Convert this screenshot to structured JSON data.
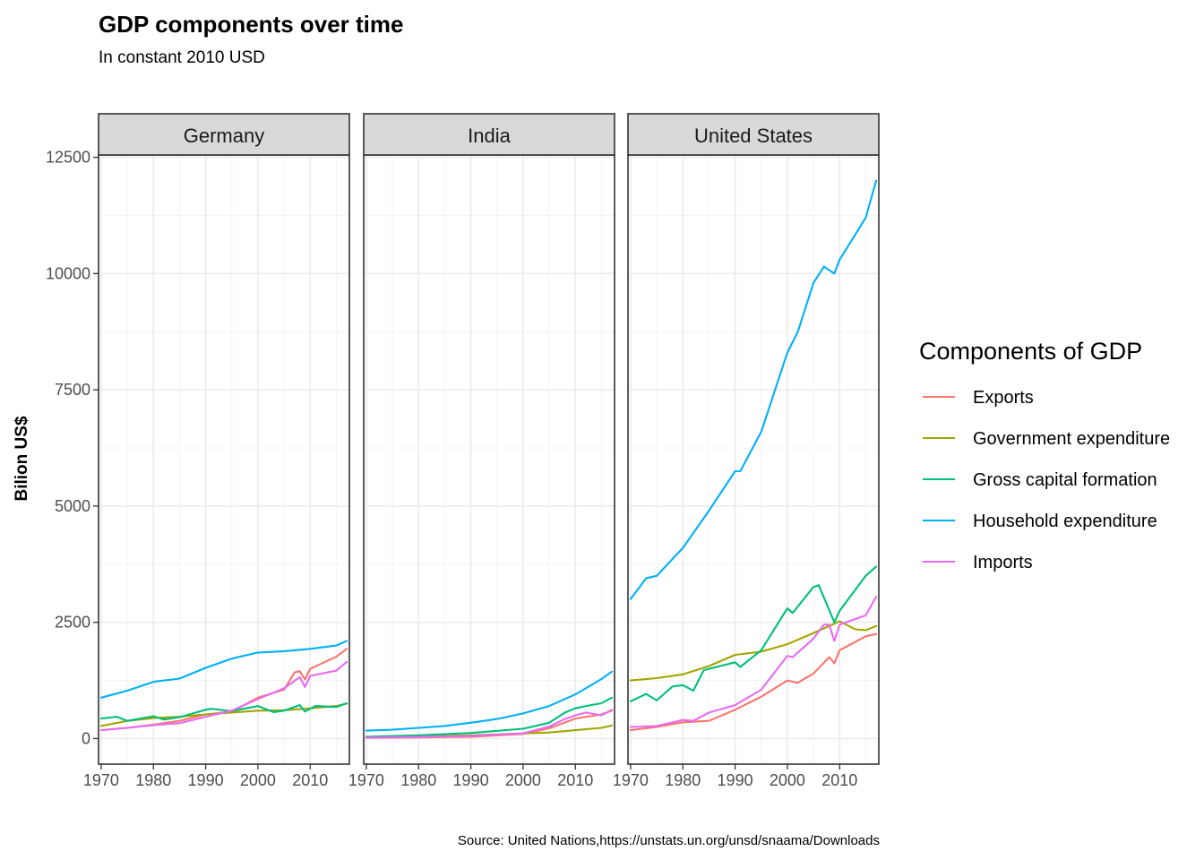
{
  "chart_data": {
    "type": "line",
    "title": "GDP components over time",
    "subtitle": "In constant 2010 USD",
    "ylabel": "Bilion US$",
    "xlabel": "",
    "caption": "Source: United Nations,https://unstats.un.org/unsd/snaama/Downloads",
    "ylim": [
      -550,
      12550
    ],
    "y_ticks": [
      0,
      2500,
      5000,
      7500,
      10000,
      12500
    ],
    "xlim": [
      1969.5,
      2017.5
    ],
    "x_ticks": [
      1970,
      1980,
      1990,
      2000,
      2010
    ],
    "legend": {
      "title": "Components of GDP",
      "position": "right",
      "entries": [
        {
          "name": "Exports",
          "color": "#F8766D"
        },
        {
          "name": "Government expenditure",
          "color": "#A3A500"
        },
        {
          "name": "Gross capital formation",
          "color": "#00BF7D"
        },
        {
          "name": "Household expenditure",
          "color": "#00B0F6"
        },
        {
          "name": "Imports",
          "color": "#E76BF3"
        }
      ]
    },
    "panels": [
      {
        "name": "Germany",
        "series": [
          {
            "name": "Exports",
            "x": [
              1970,
              1975,
              1980,
              1985,
              1990,
              1995,
              2000,
              2005,
              2007,
              2008,
              2009,
              2010,
              2015,
              2017
            ],
            "y": [
              180,
              230,
              300,
              380,
              520,
              580,
              880,
              1050,
              1420,
              1450,
              1270,
              1500,
              1760,
              1930
            ]
          },
          {
            "name": "Government expenditure",
            "x": [
              1970,
              1975,
              1980,
              1985,
              1990,
              1995,
              2000,
              2005,
              2010,
              2015,
              2017
            ],
            "y": [
              270,
              380,
              440,
              470,
              520,
              560,
              600,
              610,
              650,
              700,
              750
            ]
          },
          {
            "name": "Gross capital formation",
            "x": [
              1970,
              1973,
              1975,
              1980,
              1982,
              1985,
              1990,
              1991,
              1995,
              2000,
              2003,
              2005,
              2008,
              2009,
              2011,
              2015,
              2017
            ],
            "y": [
              430,
              470,
              380,
              480,
              410,
              460,
              620,
              640,
              590,
              700,
              570,
              600,
              720,
              580,
              700,
              680,
              760
            ]
          },
          {
            "name": "Household expenditure",
            "x": [
              1970,
              1975,
              1980,
              1985,
              1990,
              1995,
              2000,
              2005,
              2010,
              2015,
              2017
            ],
            "y": [
              880,
              1030,
              1220,
              1290,
              1520,
              1720,
              1850,
              1880,
              1930,
              2000,
              2100
            ]
          },
          {
            "name": "Imports",
            "x": [
              1970,
              1975,
              1980,
              1985,
              1990,
              1995,
              2000,
              2005,
              2008,
              2009,
              2010,
              2015,
              2017
            ],
            "y": [
              180,
              230,
              290,
              330,
              470,
              600,
              850,
              1080,
              1320,
              1110,
              1350,
              1460,
              1650
            ]
          }
        ]
      },
      {
        "name": "India",
        "series": [
          {
            "name": "Exports",
            "x": [
              1970,
              1980,
              1990,
              2000,
              2005,
              2010,
              2015,
              2017
            ],
            "y": [
              15,
              25,
              40,
              100,
              220,
              430,
              520,
              600
            ]
          },
          {
            "name": "Government expenditure",
            "x": [
              1970,
              1980,
              1990,
              2000,
              2005,
              2010,
              2015,
              2017
            ],
            "y": [
              30,
              45,
              70,
              110,
              130,
              180,
              230,
              280
            ]
          },
          {
            "name": "Gross capital formation",
            "x": [
              1970,
              1980,
              1990,
              2000,
              2005,
              2008,
              2010,
              2012,
              2015,
              2017
            ],
            "y": [
              40,
              70,
              120,
              210,
              340,
              560,
              650,
              700,
              760,
              880
            ]
          },
          {
            "name": "Household expenditure",
            "x": [
              1970,
              1975,
              1980,
              1985,
              1990,
              1995,
              2000,
              2005,
              2010,
              2015,
              2017
            ],
            "y": [
              170,
              190,
              230,
              270,
              340,
              420,
              540,
              700,
              950,
              1280,
              1440
            ]
          },
          {
            "name": "Imports",
            "x": [
              1970,
              1980,
              1990,
              2000,
              2005,
              2008,
              2010,
              2012,
              2015,
              2017
            ],
            "y": [
              20,
              35,
              55,
              110,
              260,
              420,
              500,
              560,
              500,
              620
            ]
          }
        ]
      },
      {
        "name": "United States",
        "series": [
          {
            "name": "Exports",
            "x": [
              1970,
              1975,
              1980,
              1985,
              1990,
              1995,
              2000,
              2002,
              2005,
              2008,
              2009,
              2010,
              2015,
              2017
            ],
            "y": [
              180,
              250,
              350,
              380,
              620,
              900,
              1250,
              1200,
              1400,
              1750,
              1620,
              1900,
              2200,
              2250
            ]
          },
          {
            "name": "Government expenditure",
            "x": [
              1970,
              1975,
              1980,
              1985,
              1990,
              1995,
              2000,
              2005,
              2010,
              2013,
              2015,
              2017
            ],
            "y": [
              1250,
              1300,
              1380,
              1560,
              1800,
              1870,
              2030,
              2270,
              2520,
              2350,
              2330,
              2420
            ]
          },
          {
            "name": "Gross capital formation",
            "x": [
              1970,
              1973,
              1975,
              1978,
              1980,
              1982,
              1984,
              1985,
              1990,
              1991,
              1995,
              2000,
              2001,
              2005,
              2006,
              2009,
              2010,
              2015,
              2017
            ],
            "y": [
              800,
              960,
              820,
              1120,
              1150,
              1030,
              1470,
              1500,
              1640,
              1540,
              1900,
              2800,
              2700,
              3260,
              3300,
              2500,
              2750,
              3500,
              3700
            ]
          },
          {
            "name": "Household expenditure",
            "x": [
              1970,
              1973,
              1975,
              1980,
              1985,
              1990,
              1991,
              1995,
              2000,
              2002,
              2005,
              2007,
              2009,
              2010,
              2015,
              2017
            ],
            "y": [
              3000,
              3450,
              3500,
              4100,
              4900,
              5750,
              5750,
              6600,
              8300,
              8750,
              9800,
              10150,
              10000,
              10300,
              11200,
              12000
            ]
          },
          {
            "name": "Imports",
            "x": [
              1970,
              1975,
              1980,
              1982,
              1985,
              1990,
              1995,
              2000,
              2001,
              2005,
              2007,
              2008,
              2009,
              2010,
              2015,
              2017
            ],
            "y": [
              250,
              270,
              400,
              380,
              560,
              720,
              1050,
              1780,
              1750,
              2150,
              2450,
              2450,
              2100,
              2450,
              2650,
              3050
            ]
          }
        ]
      }
    ]
  }
}
